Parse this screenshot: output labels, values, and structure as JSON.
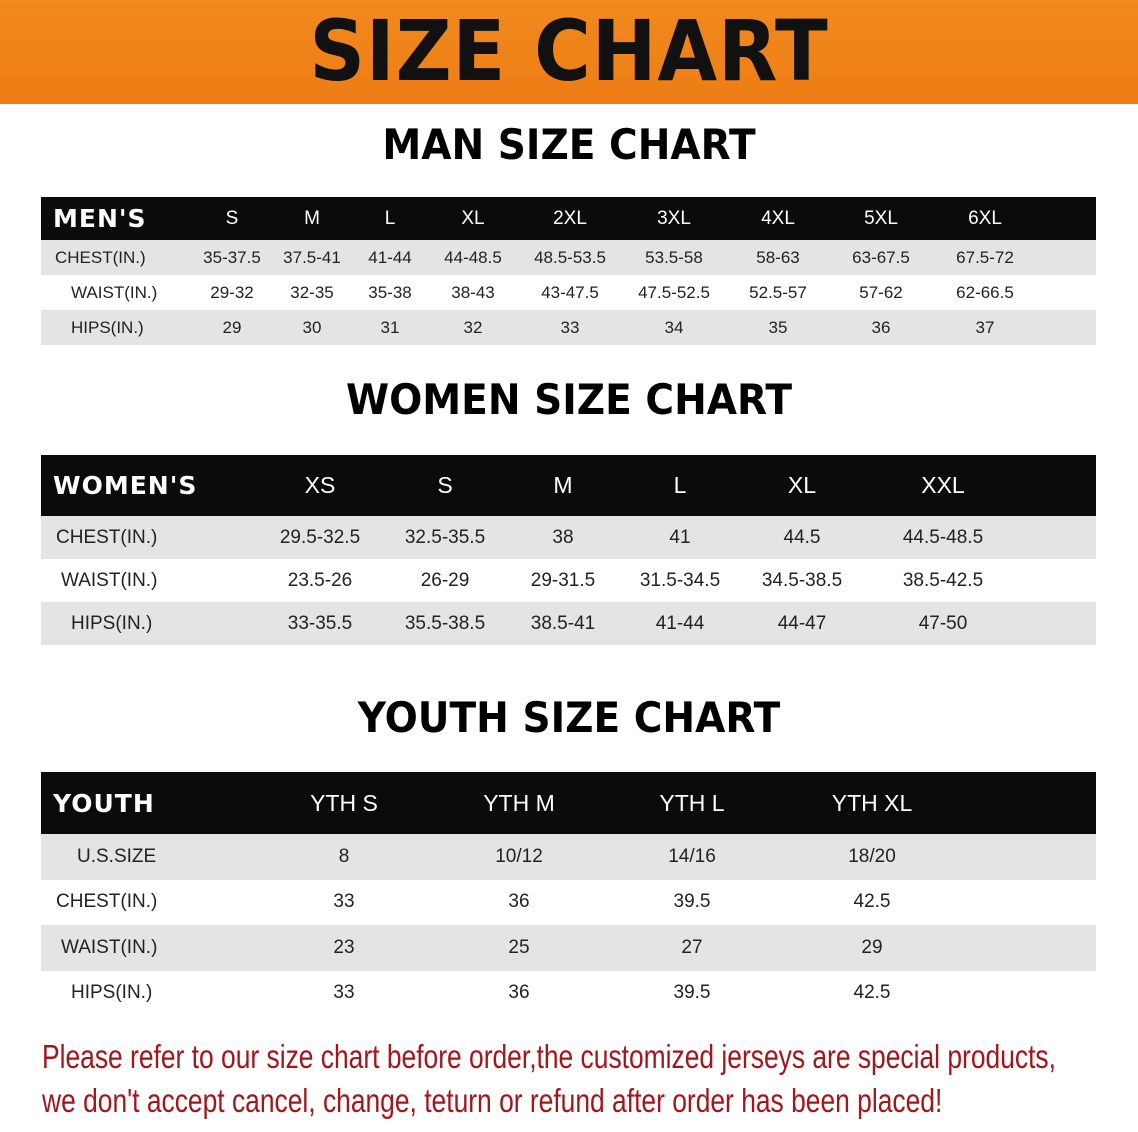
{
  "banner_title": "SIZE CHART",
  "men": {
    "title": "MAN SIZE CHART",
    "header_label": "MEN'S",
    "sizes": [
      "S",
      "M",
      "L",
      "XL",
      "2XL",
      "3XL",
      "4XL",
      "5XL",
      "6XL"
    ],
    "rows": [
      {
        "label": "CHEST(IN.)",
        "values": [
          "35-37.5",
          "37.5-41",
          "41-44",
          "44-48.5",
          "48.5-53.5",
          "53.5-58",
          "58-63",
          "63-67.5",
          "67.5-72"
        ]
      },
      {
        "label": "WAIST(IN.)",
        "values": [
          "29-32",
          "32-35",
          "35-38",
          "38-43",
          "43-47.5",
          "47.5-52.5",
          "52.5-57",
          "57-62",
          "62-66.5"
        ]
      },
      {
        "label": "HIPS(IN.)",
        "values": [
          "29",
          "30",
          "31",
          "32",
          "33",
          "34",
          "35",
          "36",
          "37"
        ]
      }
    ]
  },
  "women": {
    "title": "WOMEN SIZE CHART",
    "header_label": "WOMEN'S",
    "sizes": [
      "XS",
      "S",
      "M",
      "L",
      "XL",
      "XXL"
    ],
    "rows": [
      {
        "label": "CHEST(IN.)",
        "values": [
          "29.5-32.5",
          "32.5-35.5",
          "38",
          "41",
          "44.5",
          "44.5-48.5"
        ]
      },
      {
        "label": "WAIST(IN.)",
        "values": [
          "23.5-26",
          "26-29",
          "29-31.5",
          "31.5-34.5",
          "34.5-38.5",
          "38.5-42.5"
        ]
      },
      {
        "label": "HIPS(IN.)",
        "values": [
          "33-35.5",
          "35.5-38.5",
          "38.5-41",
          "41-44",
          "44-47",
          "47-50"
        ]
      }
    ]
  },
  "youth": {
    "title": "YOUTH SIZE CHART",
    "header_label": "YOUTH",
    "sizes": [
      "YTH S",
      "YTH M",
      "YTH L",
      "YTH XL"
    ],
    "rows": [
      {
        "label": "U.S.SIZE",
        "values": [
          "8",
          "10/12",
          "14/16",
          "18/20"
        ]
      },
      {
        "label": "CHEST(IN.)",
        "values": [
          "33",
          "36",
          "39.5",
          "42.5"
        ]
      },
      {
        "label": "WAIST(IN.)",
        "values": [
          "23",
          "25",
          "27",
          "29"
        ]
      },
      {
        "label": "HIPS(IN.)",
        "values": [
          "33",
          "36",
          "39.5",
          "42.5"
        ]
      }
    ]
  },
  "notice": {
    "line1": "Please refer to our size chart before order,the customized jerseys are special products,",
    "line2": "we don't accept cancel, change, teturn or refund after order has been placed!"
  },
  "colors": {
    "banner": "#ef8418",
    "header_bg": "#0b0b0b",
    "row_alt": "#e4e4e4",
    "notice": "#a3161c"
  }
}
